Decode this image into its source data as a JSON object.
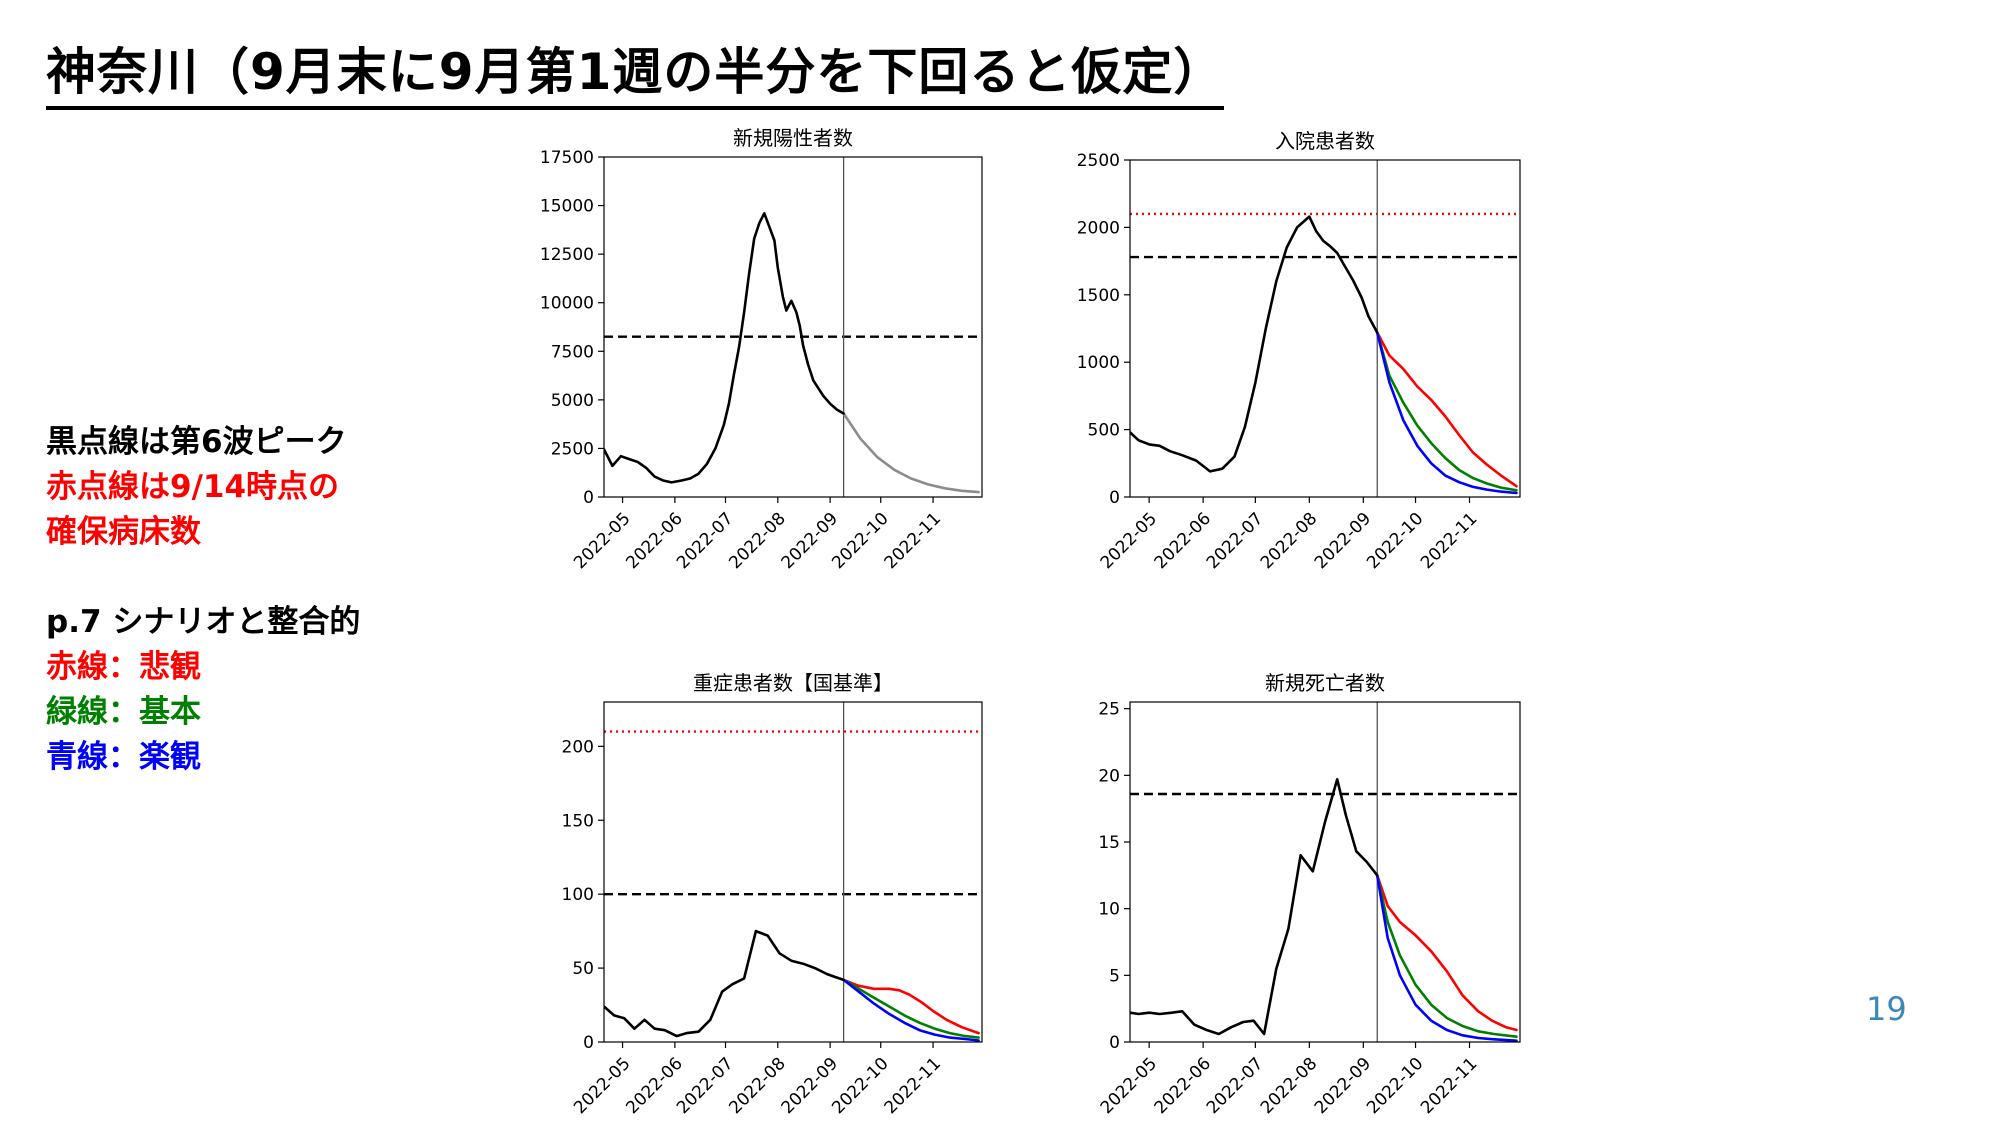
{
  "slide": {
    "title": "神奈川（9月末に9月第1週の半分を下回ると仮定）",
    "page_number": "19"
  },
  "legend_text": [
    {
      "text": "黒点線は第6波ピーク",
      "color": "#000000"
    },
    {
      "text": "赤点線は9/14時点の",
      "color": "#ff0000"
    },
    {
      "text": "確保病床数",
      "color": "#ff0000"
    },
    {
      "text": "",
      "color": "#000000"
    },
    {
      "text": "p.7 シナリオと整合的",
      "color": "#000000"
    },
    {
      "text": "赤線：悲観",
      "color": "#ff0000"
    },
    {
      "text": "緑線：基本",
      "color": "#008000"
    },
    {
      "text": "青線：楽観",
      "color": "#0000ff"
    }
  ],
  "colors": {
    "observed": "#000000",
    "projection_single": "#8c8c8c",
    "pessimistic": "#ff0000",
    "baseline": "#008000",
    "optimistic": "#0000ff",
    "peak_line": "#000000",
    "bed_capacity_line": "#ff0000",
    "divider": "#555555"
  },
  "chart_data": [
    {
      "type": "line",
      "title": "新規陽性者数",
      "x_range": [
        "2022-04-20",
        "2022-11-30"
      ],
      "x_ticks": [
        "2022-05",
        "2022-06",
        "2022-07",
        "2022-08",
        "2022-09",
        "2022-10",
        "2022-11"
      ],
      "ylim": [
        0,
        17500
      ],
      "y_ticks": [
        0,
        2500,
        5000,
        7500,
        10000,
        12500,
        15000,
        17500
      ],
      "hlines": [
        {
          "y": 8250,
          "style": "dashed",
          "color": "#000000"
        }
      ],
      "vline": "2022-09-09",
      "observed": {
        "x": [
          "2022-04-20",
          "2022-04-25",
          "2022-04-30",
          "2022-05-05",
          "2022-05-10",
          "2022-05-15",
          "2022-05-20",
          "2022-05-25",
          "2022-05-30",
          "2022-06-05",
          "2022-06-10",
          "2022-06-15",
          "2022-06-20",
          "2022-06-25",
          "2022-06-30",
          "2022-07-03",
          "2022-07-06",
          "2022-07-09",
          "2022-07-12",
          "2022-07-15",
          "2022-07-18",
          "2022-07-21",
          "2022-07-24",
          "2022-07-27",
          "2022-07-30",
          "2022-08-01",
          "2022-08-04",
          "2022-08-06",
          "2022-08-09",
          "2022-08-12",
          "2022-08-14",
          "2022-08-16",
          "2022-08-19",
          "2022-08-22",
          "2022-08-25",
          "2022-08-28",
          "2022-09-01",
          "2022-09-05",
          "2022-09-09"
        ],
        "y": [
          2450,
          1600,
          2100,
          1950,
          1800,
          1500,
          1050,
          850,
          750,
          850,
          950,
          1200,
          1700,
          2500,
          3700,
          4800,
          6300,
          7700,
          9500,
          11500,
          13300,
          14100,
          14600,
          13900,
          13200,
          11800,
          10300,
          9600,
          10100,
          9500,
          8800,
          7800,
          6800,
          6000,
          5600,
          5200,
          4800,
          4500,
          4300
        ]
      },
      "projections": [
        {
          "color": "#8c8c8c",
          "x": [
            "2022-09-09",
            "2022-09-19",
            "2022-09-29",
            "2022-10-09",
            "2022-10-19",
            "2022-10-29",
            "2022-11-08",
            "2022-11-18",
            "2022-11-28"
          ],
          "y": [
            4300,
            3000,
            2050,
            1400,
            950,
            650,
            450,
            320,
            250
          ]
        }
      ]
    },
    {
      "type": "line",
      "title": "入院患者数",
      "x_range": [
        "2022-04-20",
        "2022-11-30"
      ],
      "x_ticks": [
        "2022-05",
        "2022-06",
        "2022-07",
        "2022-08",
        "2022-09",
        "2022-10",
        "2022-11"
      ],
      "ylim": [
        0,
        2500
      ],
      "y_ticks": [
        0,
        500,
        1000,
        1500,
        2000,
        2500
      ],
      "hlines": [
        {
          "y": 2100,
          "style": "dotted",
          "color": "#ff0000"
        },
        {
          "y": 1780,
          "style": "dashed",
          "color": "#000000"
        }
      ],
      "vline": "2022-09-09",
      "observed": {
        "x": [
          "2022-04-20",
          "2022-04-25",
          "2022-05-01",
          "2022-05-07",
          "2022-05-13",
          "2022-05-20",
          "2022-05-28",
          "2022-06-05",
          "2022-06-12",
          "2022-06-19",
          "2022-06-25",
          "2022-07-01",
          "2022-07-07",
          "2022-07-13",
          "2022-07-19",
          "2022-07-25",
          "2022-08-01",
          "2022-08-05",
          "2022-08-09",
          "2022-08-13",
          "2022-08-17",
          "2022-08-21",
          "2022-08-26",
          "2022-08-31",
          "2022-09-04",
          "2022-09-09"
        ],
        "y": [
          480,
          420,
          390,
          380,
          340,
          310,
          270,
          190,
          210,
          300,
          520,
          850,
          1250,
          1600,
          1850,
          2000,
          2080,
          1970,
          1900,
          1860,
          1810,
          1720,
          1610,
          1480,
          1340,
          1220
        ]
      },
      "projections": [
        {
          "name": "悲観",
          "color": "#ff0000",
          "x": [
            "2022-09-09",
            "2022-09-16",
            "2022-09-24",
            "2022-10-02",
            "2022-10-10",
            "2022-10-18",
            "2022-10-26",
            "2022-11-03",
            "2022-11-11",
            "2022-11-19",
            "2022-11-28"
          ],
          "y": [
            1220,
            1050,
            950,
            820,
            720,
            600,
            460,
            330,
            240,
            160,
            80
          ]
        },
        {
          "name": "基本",
          "color": "#008000",
          "x": [
            "2022-09-09",
            "2022-09-16",
            "2022-09-24",
            "2022-10-02",
            "2022-10-10",
            "2022-10-18",
            "2022-10-26",
            "2022-11-03",
            "2022-11-11",
            "2022-11-19",
            "2022-11-28"
          ],
          "y": [
            1220,
            900,
            700,
            530,
            400,
            290,
            200,
            140,
            100,
            70,
            50
          ]
        },
        {
          "name": "楽観",
          "color": "#0000ff",
          "x": [
            "2022-09-09",
            "2022-09-16",
            "2022-09-24",
            "2022-10-02",
            "2022-10-10",
            "2022-10-18",
            "2022-10-26",
            "2022-11-03",
            "2022-11-11",
            "2022-11-19",
            "2022-11-28"
          ],
          "y": [
            1220,
            850,
            570,
            380,
            250,
            160,
            110,
            75,
            55,
            40,
            30
          ]
        }
      ]
    },
    {
      "type": "line",
      "title": "重症患者数【国基準】",
      "x_range": [
        "2022-04-20",
        "2022-11-30"
      ],
      "x_ticks": [
        "2022-05",
        "2022-06",
        "2022-07",
        "2022-08",
        "2022-09",
        "2022-10",
        "2022-11"
      ],
      "ylim": [
        0,
        230
      ],
      "y_ticks": [
        0,
        50,
        100,
        150,
        200
      ],
      "hlines": [
        {
          "y": 210,
          "style": "dotted",
          "color": "#ff0000"
        },
        {
          "y": 100,
          "style": "dashed",
          "color": "#000000"
        }
      ],
      "vline": "2022-09-09",
      "observed": {
        "x": [
          "2022-04-20",
          "2022-04-26",
          "2022-05-02",
          "2022-05-08",
          "2022-05-14",
          "2022-05-20",
          "2022-05-26",
          "2022-06-02",
          "2022-06-08",
          "2022-06-15",
          "2022-06-22",
          "2022-06-29",
          "2022-07-05",
          "2022-07-12",
          "2022-07-19",
          "2022-07-26",
          "2022-08-02",
          "2022-08-09",
          "2022-08-16",
          "2022-08-23",
          "2022-08-30",
          "2022-09-04",
          "2022-09-09"
        ],
        "y": [
          24,
          18,
          16,
          9,
          15,
          9,
          8,
          4,
          6,
          7,
          15,
          34,
          39,
          43,
          75,
          72,
          60,
          55,
          53,
          50,
          46,
          44,
          42
        ]
      },
      "projections": [
        {
          "name": "悲観",
          "color": "#ff0000",
          "x": [
            "2022-09-09",
            "2022-09-18",
            "2022-09-27",
            "2022-10-06",
            "2022-10-12",
            "2022-10-18",
            "2022-10-25",
            "2022-11-01",
            "2022-11-09",
            "2022-11-18",
            "2022-11-28"
          ],
          "y": [
            42,
            38,
            36,
            36,
            35,
            32,
            27,
            21,
            15,
            10,
            6
          ]
        },
        {
          "name": "基本",
          "color": "#008000",
          "x": [
            "2022-09-09",
            "2022-09-18",
            "2022-09-27",
            "2022-10-06",
            "2022-10-15",
            "2022-10-24",
            "2022-11-02",
            "2022-11-11",
            "2022-11-20",
            "2022-11-28"
          ],
          "y": [
            42,
            36,
            30,
            24,
            18,
            13,
            9,
            6,
            4,
            3
          ]
        },
        {
          "name": "楽観",
          "color": "#0000ff",
          "x": [
            "2022-09-09",
            "2022-09-18",
            "2022-09-27",
            "2022-10-06",
            "2022-10-15",
            "2022-10-24",
            "2022-11-02",
            "2022-11-11",
            "2022-11-20",
            "2022-11-28"
          ],
          "y": [
            42,
            34,
            26,
            19,
            13,
            8,
            5,
            3,
            2,
            1
          ]
        }
      ]
    },
    {
      "type": "line",
      "title": "新規死亡者数",
      "x_range": [
        "2022-04-20",
        "2022-11-30"
      ],
      "x_ticks": [
        "2022-05",
        "2022-06",
        "2022-07",
        "2022-08",
        "2022-09",
        "2022-10",
        "2022-11"
      ],
      "ylim": [
        0,
        25.5
      ],
      "y_ticks": [
        0,
        5,
        10,
        15,
        20,
        25
      ],
      "hlines": [
        {
          "y": 18.6,
          "style": "dashed",
          "color": "#000000"
        }
      ],
      "vline": "2022-09-09",
      "observed": {
        "x": [
          "2022-04-20",
          "2022-04-25",
          "2022-05-01",
          "2022-05-07",
          "2022-05-14",
          "2022-05-20",
          "2022-05-27",
          "2022-06-03",
          "2022-06-10",
          "2022-06-17",
          "2022-06-24",
          "2022-06-30",
          "2022-07-06",
          "2022-07-13",
          "2022-07-20",
          "2022-07-27",
          "2022-08-03",
          "2022-08-10",
          "2022-08-17",
          "2022-08-22",
          "2022-08-28",
          "2022-09-03",
          "2022-09-09"
        ],
        "y": [
          2.2,
          2.1,
          2.2,
          2.1,
          2.2,
          2.3,
          1.3,
          0.9,
          0.6,
          1.1,
          1.5,
          1.6,
          0.6,
          5.5,
          8.5,
          14,
          12.8,
          16.5,
          19.7,
          17,
          14.3,
          13.5,
          12.5
        ]
      },
      "projections": [
        {
          "name": "悲観",
          "color": "#ff0000",
          "x": [
            "2022-09-09",
            "2022-09-15",
            "2022-09-22",
            "2022-10-01",
            "2022-10-10",
            "2022-10-19",
            "2022-10-28",
            "2022-11-06",
            "2022-11-14",
            "2022-11-22",
            "2022-11-28"
          ],
          "y": [
            12.5,
            10.2,
            9,
            8,
            6.8,
            5.3,
            3.5,
            2.3,
            1.6,
            1.1,
            0.9
          ]
        },
        {
          "name": "基本",
          "color": "#008000",
          "x": [
            "2022-09-09",
            "2022-09-15",
            "2022-09-22",
            "2022-10-01",
            "2022-10-10",
            "2022-10-19",
            "2022-10-28",
            "2022-11-06",
            "2022-11-15",
            "2022-11-28"
          ],
          "y": [
            12.5,
            9,
            6.5,
            4.3,
            2.8,
            1.8,
            1.2,
            0.8,
            0.6,
            0.4
          ]
        },
        {
          "name": "楽観",
          "color": "#0000ff",
          "x": [
            "2022-09-09",
            "2022-09-15",
            "2022-09-22",
            "2022-10-01",
            "2022-10-10",
            "2022-10-19",
            "2022-10-28",
            "2022-11-06",
            "2022-11-15",
            "2022-11-28"
          ],
          "y": [
            12.5,
            7.8,
            5,
            2.8,
            1.6,
            0.9,
            0.5,
            0.3,
            0.2,
            0.1
          ]
        }
      ]
    }
  ]
}
